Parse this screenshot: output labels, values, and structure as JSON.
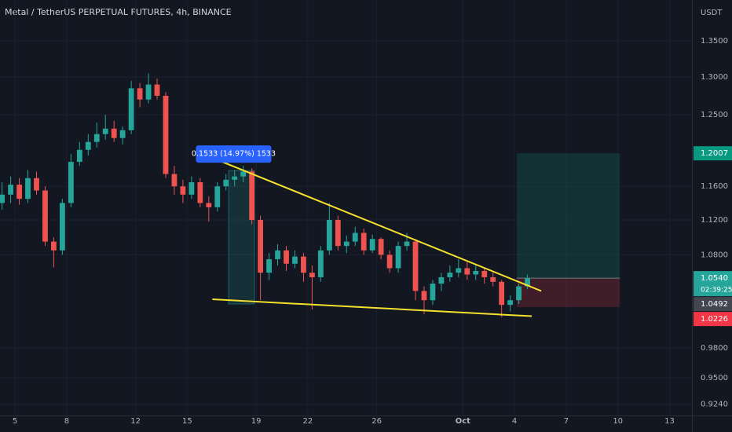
{
  "chart_data": {
    "type": "candlestick",
    "title": "Metal / TetherUS PERPETUAL FUTURES, 4h, BINANCE",
    "y_unit": "USDT",
    "log_scale": true,
    "grid": true,
    "up_color": "#26a69a",
    "down_color": "#ef5350",
    "xlim": [
      4.13,
      44.3
    ],
    "xticks": [
      5,
      8,
      12,
      15,
      19,
      22,
      26,
      {
        "value": 31,
        "label": "Oct"
      },
      {
        "value": 34,
        "label": "4"
      },
      {
        "value": 37,
        "label": "7"
      },
      {
        "value": 40,
        "label": "10"
      },
      {
        "value": 43,
        "label": "13"
      }
    ],
    "ylim": [
      0.914,
      1.409
    ],
    "yticks": [
      {
        "value": 0.924,
        "label": "0.9240"
      },
      {
        "value": 0.95,
        "label": "0.9500"
      },
      {
        "value": 0.98,
        "label": "0.9800"
      },
      {
        "value": 1.08,
        "label": "1.0800"
      },
      {
        "value": 1.12,
        "label": "1.1200"
      },
      {
        "value": 1.16,
        "label": "1.1600"
      },
      {
        "value": 1.25,
        "label": "1.2500"
      },
      {
        "value": 1.3,
        "label": "1.3000"
      },
      {
        "value": 1.35,
        "label": "1.3500"
      }
    ],
    "x": [
      4.25,
      4.75,
      5.25,
      5.75,
      6.25,
      6.75,
      7.25,
      7.75,
      8.25,
      8.75,
      9.25,
      9.75,
      10.25,
      10.75,
      11.25,
      11.75,
      12.25,
      12.75,
      13.25,
      13.75,
      14.25,
      14.75,
      15.25,
      15.75,
      16.25,
      16.75,
      17.25,
      17.75,
      18.25,
      18.75,
      19.25,
      19.75,
      20.25,
      20.75,
      21.25,
      21.75,
      22.25,
      22.75,
      23.25,
      23.75,
      24.25,
      24.75,
      25.25,
      25.75,
      26.25,
      26.75,
      27.25,
      27.75,
      28.25,
      28.75,
      29.25,
      29.75,
      30.25,
      30.75,
      31.25,
      31.75,
      32.25,
      32.75,
      33.25,
      33.75,
      34.25,
      34.75
    ],
    "open": [
      1.14,
      1.15,
      1.162,
      1.145,
      1.17,
      1.155,
      1.095,
      1.085,
      1.14,
      1.19,
      1.205,
      1.215,
      1.225,
      1.232,
      1.22,
      1.23,
      1.285,
      1.27,
      1.29,
      1.275,
      1.175,
      1.16,
      1.15,
      1.165,
      1.14,
      1.135,
      1.16,
      1.168,
      1.172,
      1.178,
      1.12,
      1.06,
      1.075,
      1.085,
      1.07,
      1.078,
      1.06,
      1.055,
      1.085,
      1.12,
      1.09,
      1.095,
      1.105,
      1.085,
      1.098,
      1.08,
      1.065,
      1.09,
      1.095,
      1.04,
      1.03,
      1.048,
      1.055,
      1.06,
      1.065,
      1.058,
      1.062,
      1.055,
      1.05,
      1.025,
      1.03,
      1.045
    ],
    "high": [
      1.165,
      1.172,
      1.17,
      1.18,
      1.178,
      1.16,
      1.1,
      1.145,
      1.2,
      1.215,
      1.225,
      1.24,
      1.25,
      1.242,
      1.235,
      1.295,
      1.292,
      1.305,
      1.298,
      1.28,
      1.185,
      1.168,
      1.172,
      1.17,
      1.148,
      1.165,
      1.175,
      1.18,
      1.185,
      1.182,
      1.125,
      1.082,
      1.092,
      1.09,
      1.085,
      1.082,
      1.068,
      1.09,
      1.14,
      1.125,
      1.102,
      1.112,
      1.11,
      1.103,
      1.1,
      1.085,
      1.095,
      1.105,
      1.098,
      1.045,
      1.052,
      1.06,
      1.068,
      1.075,
      1.072,
      1.068,
      1.066,
      1.06,
      1.052,
      1.035,
      1.048,
      1.058
    ],
    "low": [
      1.132,
      1.14,
      1.138,
      1.14,
      1.15,
      1.09,
      1.066,
      1.08,
      1.135,
      1.185,
      1.198,
      1.208,
      1.218,
      1.215,
      1.212,
      1.225,
      1.26,
      1.265,
      1.27,
      1.17,
      1.15,
      1.14,
      1.145,
      1.135,
      1.118,
      1.13,
      1.155,
      1.16,
      1.165,
      1.115,
      1.03,
      1.052,
      1.068,
      1.062,
      1.065,
      1.05,
      1.02,
      1.05,
      1.08,
      1.085,
      1.082,
      1.09,
      1.08,
      1.082,
      1.075,
      1.06,
      1.06,
      1.085,
      1.03,
      1.015,
      1.025,
      1.04,
      1.05,
      1.055,
      1.052,
      1.052,
      1.048,
      1.045,
      1.012,
      1.018,
      1.026,
      1.042
    ],
    "close": [
      1.15,
      1.162,
      1.145,
      1.17,
      1.155,
      1.095,
      1.085,
      1.14,
      1.19,
      1.205,
      1.215,
      1.225,
      1.232,
      1.22,
      1.23,
      1.285,
      1.27,
      1.29,
      1.275,
      1.175,
      1.16,
      1.15,
      1.165,
      1.14,
      1.135,
      1.16,
      1.168,
      1.172,
      1.178,
      1.12,
      1.06,
      1.075,
      1.085,
      1.07,
      1.078,
      1.06,
      1.055,
      1.085,
      1.12,
      1.09,
      1.095,
      1.105,
      1.085,
      1.098,
      1.08,
      1.065,
      1.09,
      1.095,
      1.04,
      1.03,
      1.048,
      1.055,
      1.06,
      1.065,
      1.058,
      1.062,
      1.055,
      1.05,
      1.025,
      1.03,
      1.045,
      1.054
    ],
    "trendlines": [
      {
        "color": "#f5e12d",
        "x": [
          16.92,
          35.55
        ],
        "y": [
          1.191,
          1.04
        ]
      },
      {
        "color": "#f5e12d",
        "x": [
          16.46,
          35.0
        ],
        "y": [
          1.031,
          1.013
        ]
      }
    ],
    "measure": {
      "x": [
        17.4,
        18.9
      ],
      "from": 1.026,
      "to": 1.1793,
      "label": "0.1533 (14.97%) 1533"
    },
    "position": {
      "x": [
        34.13,
        40.11
      ],
      "target": 1.2007,
      "entry": {
        "value": 1.054,
        "label": "1.0540"
      },
      "stop": 1.0226
    },
    "last_price": {
      "value": 1.054,
      "label": "1.0540"
    },
    "countdown": "02:39:25",
    "marker_price": 1.0492
  }
}
